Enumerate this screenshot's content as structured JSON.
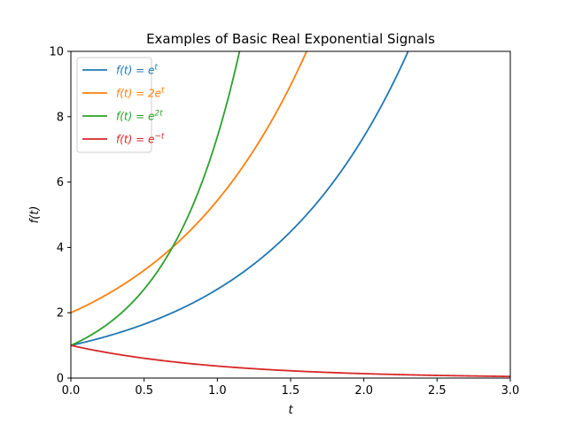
{
  "chart_data": {
    "type": "line",
    "title": "Examples of Basic Real Exponential Signals",
    "xlabel": "t",
    "ylabel": "f(t)",
    "xlim": [
      0.0,
      3.0
    ],
    "ylim": [
      0,
      10
    ],
    "xticks": [
      "0.0",
      "0.5",
      "1.0",
      "1.5",
      "2.0",
      "2.5",
      "3.0"
    ],
    "yticks": [
      "0",
      "2",
      "4",
      "6",
      "8",
      "10"
    ],
    "grid": false,
    "legend_position": "top-left",
    "series": [
      {
        "name": "f(t) = e^t",
        "legend": "f(t) = e",
        "exp": "t",
        "color": "#1f77b4",
        "a": 1,
        "k": 1
      },
      {
        "name": "f(t) = 2e^t",
        "legend": "f(t) = 2e",
        "exp": "t",
        "color": "#ff7f0e",
        "a": 2,
        "k": 1
      },
      {
        "name": "f(t) = e^{2t}",
        "legend": "f(t) = e",
        "exp": "2t",
        "color": "#2ca02c",
        "a": 1,
        "k": 2
      },
      {
        "name": "f(t) = e^{-t}",
        "legend": "f(t) = e",
        "exp": "−t",
        "color": "#d62728",
        "a": 1,
        "k": -1
      }
    ]
  }
}
